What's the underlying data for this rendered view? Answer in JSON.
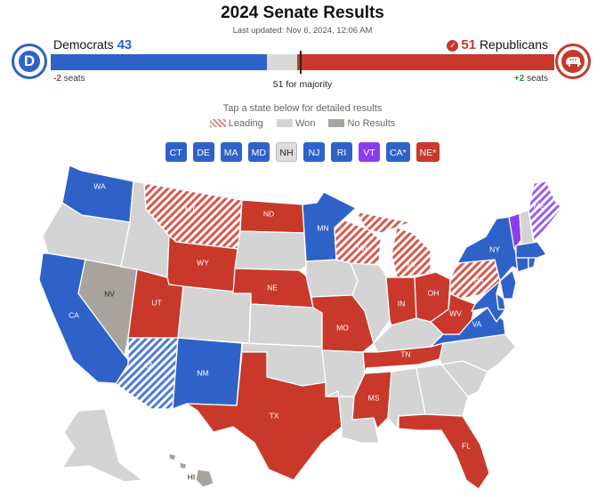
{
  "header": {
    "title": "2024 Senate Results",
    "updated": "Last updated: Nov 6, 2024, 12:06 AM"
  },
  "dem": {
    "name": "Democrats",
    "seats": "43",
    "change": "-2",
    "change_unit": "seats",
    "color": "#2f62c9"
  },
  "rep": {
    "name": "Republicans",
    "seats": "51",
    "change": "+2",
    "change_unit": "seats",
    "color": "#c8392b"
  },
  "bar": {
    "total": 100,
    "dem_seats": 43,
    "rep_seats": 51,
    "majority": 51
  },
  "majority_label": "51 for majority",
  "instructions": "Tap a state below for detailed results",
  "legend": {
    "leading": "Leading",
    "won": "Won",
    "no_results": "No Results"
  },
  "chips": [
    {
      "label": "CT",
      "party": "dem"
    },
    {
      "label": "DE",
      "party": "dem"
    },
    {
      "label": "MA",
      "party": "dem"
    },
    {
      "label": "MD",
      "party": "dem"
    },
    {
      "label": "NH",
      "party": "gray"
    },
    {
      "label": "NJ",
      "party": "dem"
    },
    {
      "label": "RI",
      "party": "dem"
    },
    {
      "label": "VT",
      "party": "ind"
    },
    {
      "label": "CA*",
      "party": "dem"
    },
    {
      "label": "NE*",
      "party": "rep"
    }
  ],
  "colors": {
    "dem": "#2f62c9",
    "rep": "#c8392b",
    "ind": "#8a3df0",
    "no_race": "#d4d4d4",
    "no_results": "#a9a39e",
    "dem_lead_stripe": "#a8c0ee",
    "rep_lead_stripe": "#e4a29c",
    "ind_lead_stripe": "#c9a8f5"
  },
  "map": {
    "states": {
      "WA": {
        "label": "WA",
        "status": "dem"
      },
      "OR": {
        "label": "",
        "status": "none"
      },
      "CA": {
        "label": "CA",
        "status": "dem"
      },
      "NV": {
        "label": "NV",
        "status": "no_results"
      },
      "ID": {
        "label": "",
        "status": "none"
      },
      "MT": {
        "label": "MT",
        "status": "rep_lead"
      },
      "WY": {
        "label": "WY",
        "status": "rep"
      },
      "UT": {
        "label": "UT",
        "status": "rep"
      },
      "AZ": {
        "label": "AZ",
        "status": "dem_lead"
      },
      "CO": {
        "label": "",
        "status": "none"
      },
      "NM": {
        "label": "NM",
        "status": "dem"
      },
      "ND": {
        "label": "ND",
        "status": "rep"
      },
      "SD": {
        "label": "",
        "status": "none"
      },
      "NE": {
        "label": "NE",
        "status": "rep"
      },
      "KS": {
        "label": "",
        "status": "none"
      },
      "OK": {
        "label": "",
        "status": "none"
      },
      "TX": {
        "label": "TX",
        "status": "rep"
      },
      "MN": {
        "label": "MN",
        "status": "dem"
      },
      "IA": {
        "label": "",
        "status": "none"
      },
      "MO": {
        "label": "MO",
        "status": "rep"
      },
      "AR": {
        "label": "",
        "status": "none"
      },
      "LA": {
        "label": "",
        "status": "none"
      },
      "WI": {
        "label": "WI",
        "status": "rep_lead"
      },
      "IL": {
        "label": "",
        "status": "none"
      },
      "MI": {
        "label": "MI",
        "status": "rep_lead"
      },
      "IN": {
        "label": "IN",
        "status": "rep"
      },
      "OH": {
        "label": "OH",
        "status": "rep"
      },
      "KY": {
        "label": "",
        "status": "none"
      },
      "TN": {
        "label": "TN",
        "status": "rep"
      },
      "MS": {
        "label": "MS",
        "status": "rep"
      },
      "AL": {
        "label": "",
        "status": "none"
      },
      "GA": {
        "label": "",
        "status": "none"
      },
      "FL": {
        "label": "FL",
        "status": "rep"
      },
      "SC": {
        "label": "",
        "status": "none"
      },
      "NC": {
        "label": "",
        "status": "none"
      },
      "VA": {
        "label": "VA",
        "status": "dem"
      },
      "WV": {
        "label": "WV",
        "status": "rep"
      },
      "PA": {
        "label": "PA",
        "status": "rep_lead"
      },
      "NY": {
        "label": "NY",
        "status": "dem"
      },
      "VT": {
        "label": "",
        "status": "ind"
      },
      "NH": {
        "label": "",
        "status": "none"
      },
      "ME": {
        "label": "ME",
        "status": "ind_lead"
      },
      "MA": {
        "label": "",
        "status": "dem"
      },
      "CT": {
        "label": "",
        "status": "dem"
      },
      "RI": {
        "label": "",
        "status": "dem"
      },
      "NJ": {
        "label": "",
        "status": "dem"
      },
      "DE": {
        "label": "",
        "status": "dem"
      },
      "MD": {
        "label": "",
        "status": "dem"
      },
      "AK": {
        "label": "",
        "status": "none"
      },
      "HI": {
        "label": "HI",
        "status": "no_results"
      }
    }
  }
}
